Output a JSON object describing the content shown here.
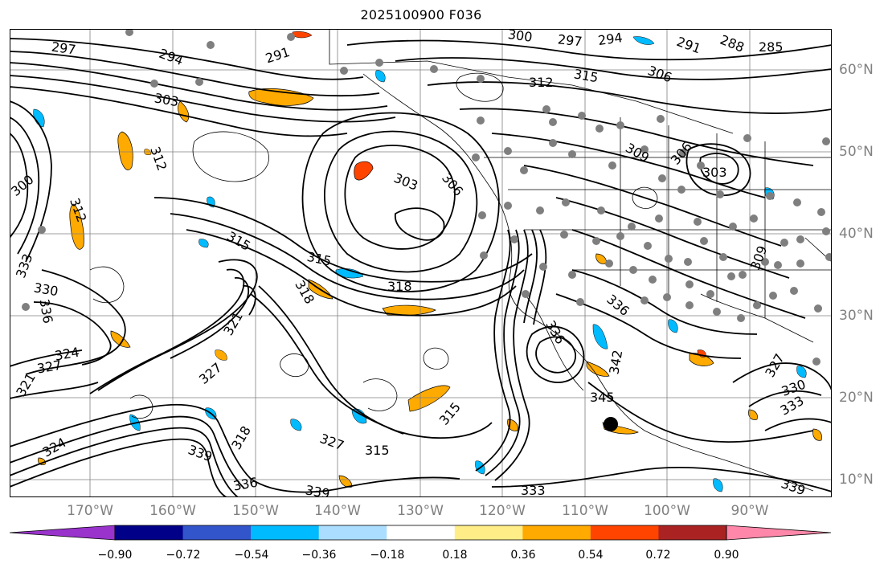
{
  "title": "2025100900 F036",
  "map": {
    "lon_labels": [
      "170°W",
      "160°W",
      "150°W",
      "140°W",
      "130°W",
      "120°W",
      "110°W",
      "100°W",
      "90°W"
    ],
    "lat_labels": [
      "60°N",
      "50°N",
      "40°N",
      "30°N",
      "20°N",
      "10°N"
    ],
    "contour_labels": [
      "297",
      "294",
      "291",
      "303",
      "300",
      "297",
      "294",
      "291",
      "288",
      "285",
      "312",
      "315",
      "306",
      "303",
      "306",
      "309",
      "303",
      "306",
      "300",
      "312",
      "315",
      "318",
      "318",
      "315",
      "321",
      "324",
      "327",
      "327",
      "318",
      "333",
      "330",
      "336",
      "339",
      "333",
      "336",
      "339",
      "342",
      "345",
      "315",
      "315",
      "327",
      "321",
      "324",
      "339",
      "336",
      "333",
      "330",
      "336",
      "327",
      "312",
      "309"
    ],
    "colors": {
      "contour": "#000000",
      "grid": "#7f7f7f",
      "border": "#000000",
      "station_dot": "#7f7f7f",
      "marker": "#000000"
    }
  },
  "colorbar": {
    "ticks": [
      "−0.90",
      "−0.72",
      "−0.54",
      "−0.36",
      "−0.18",
      "0.18",
      "0.36",
      "0.54",
      "0.72",
      "0.90"
    ],
    "colors": [
      "#9933cc",
      "#000088",
      "#3355cc",
      "#00bbff",
      "#aaddff",
      "#ffffff",
      "#ffee88",
      "#ffaa00",
      "#ff4400",
      "#aa2222",
      "#ff88aa"
    ]
  }
}
